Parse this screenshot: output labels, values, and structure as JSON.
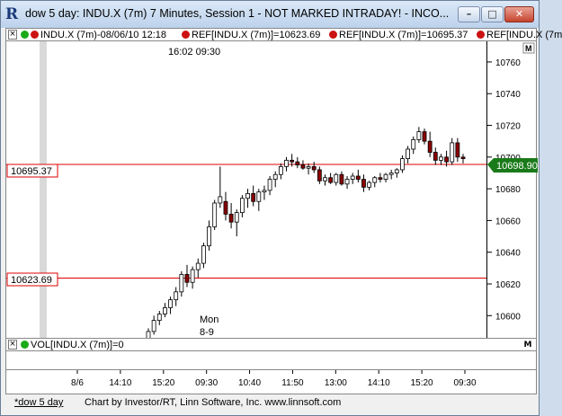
{
  "window": {
    "title": "dow 5 day: INDU.X (7m) 7 Minutes, Session 1 - NOT MARKED INTRADAY! - INCO...",
    "logo": "R",
    "min_label": "–",
    "max_label": "□",
    "close_label": "✕"
  },
  "legend": {
    "close_x": "×",
    "symbol": "INDU.X (7m)-08/06/10 12:18",
    "ref1": "REF[INDU.X (7m)]=10623.69",
    "ref2": "REF[INDU.X (7m)]=10695.37",
    "ref3": "REF[INDU.X (7m"
  },
  "chart": {
    "time_header": "16:02  09:30",
    "day_label_1": "Mon",
    "day_label_2": "8-9",
    "ref_label_1": "10623.69",
    "ref_label_2": "10695.37",
    "last_price": "10698.90",
    "maximize": "M"
  },
  "volume": {
    "close_x": "×",
    "label": "VOL[INDU.X (7m)]=0",
    "maximize": "M"
  },
  "status": {
    "tab": "*dow 5 day",
    "credit": "Chart by Investor/RT, Linn Software, Inc. www.linnsoft.com"
  },
  "colors": {
    "up_candle": "#ffffff",
    "down_candle": "#8b0000",
    "ref_line": "#dd0000",
    "last_price_bg": "#1a7a1a",
    "session_band": "#d9d9d9"
  },
  "chart_data": {
    "type": "candlestick",
    "symbol": "INDU.X",
    "interval": "7m",
    "y_ticks": [
      10600,
      10620,
      10640,
      10660,
      10680,
      10700,
      10720,
      10740,
      10760
    ],
    "ylim": [
      10586,
      10773
    ],
    "x_ticks": [
      "8/6",
      "14:10",
      "15:20",
      "09:30",
      "10:40",
      "11:50",
      "13:00",
      "14:10",
      "15:20",
      "09:30"
    ],
    "reference_lines": [
      10623.69,
      10695.37
    ],
    "last_price": 10698.9,
    "candles": [
      [
        10585,
        10592,
        10582,
        10590
      ],
      [
        10590,
        10600,
        10588,
        10597
      ],
      [
        10597,
        10603,
        10594,
        10601
      ],
      [
        10601,
        10608,
        10599,
        10605
      ],
      [
        10605,
        10612,
        10601,
        10610
      ],
      [
        10610,
        10618,
        10606,
        10615
      ],
      [
        10615,
        10628,
        10612,
        10626
      ],
      [
        10626,
        10632,
        10618,
        10621
      ],
      [
        10621,
        10631,
        10617,
        10629
      ],
      [
        10629,
        10636,
        10624,
        10633
      ],
      [
        10633,
        10646,
        10630,
        10644
      ],
      [
        10644,
        10660,
        10641,
        10656
      ],
      [
        10656,
        10673,
        10654,
        10671
      ],
      [
        10671,
        10694,
        10668,
        10675
      ],
      [
        10672,
        10678,
        10660,
        10664
      ],
      [
        10664,
        10671,
        10655,
        10659
      ],
      [
        10659,
        10667,
        10650,
        10665
      ],
      [
        10665,
        10676,
        10662,
        10674
      ],
      [
        10674,
        10680,
        10668,
        10677
      ],
      [
        10677,
        10682,
        10669,
        10672
      ],
      [
        10672,
        10680,
        10666,
        10678
      ],
      [
        10678,
        10682,
        10673,
        10679
      ],
      [
        10679,
        10688,
        10676,
        10686
      ],
      [
        10686,
        10691,
        10681,
        10689
      ],
      [
        10689,
        10696,
        10686,
        10694
      ],
      [
        10694,
        10700,
        10691,
        10698
      ],
      [
        10698,
        10702,
        10694,
        10697
      ],
      [
        10697,
        10700,
        10693,
        10695
      ],
      [
        10695,
        10698,
        10692,
        10693
      ],
      [
        10693,
        10696,
        10689,
        10694
      ],
      [
        10694,
        10697,
        10690,
        10692
      ],
      [
        10692,
        10694,
        10683,
        10685
      ],
      [
        10685,
        10689,
        10682,
        10687
      ],
      [
        10687,
        10690,
        10683,
        10684
      ],
      [
        10684,
        10690,
        10682,
        10689
      ],
      [
        10689,
        10691,
        10682,
        10683
      ],
      [
        10683,
        10688,
        10680,
        10686
      ],
      [
        10686,
        10690,
        10683,
        10688
      ],
      [
        10688,
        10692,
        10684,
        10686
      ],
      [
        10686,
        10689,
        10678,
        10681
      ],
      [
        10681,
        10685,
        10679,
        10684
      ],
      [
        10684,
        10688,
        10681,
        10687
      ],
      [
        10687,
        10690,
        10684,
        10686
      ],
      [
        10686,
        10690,
        10684,
        10689
      ],
      [
        10689,
        10692,
        10686,
        10690
      ],
      [
        10690,
        10693,
        10687,
        10692
      ],
      [
        10692,
        10701,
        10690,
        10699
      ],
      [
        10699,
        10707,
        10696,
        10705
      ],
      [
        10705,
        10713,
        10702,
        10711
      ],
      [
        10711,
        10719,
        10709,
        10716
      ],
      [
        10716,
        10718,
        10708,
        10710
      ],
      [
        10710,
        10716,
        10700,
        10703
      ],
      [
        10703,
        10706,
        10695,
        10698
      ],
      [
        10698,
        10702,
        10695,
        10700
      ],
      [
        10700,
        10704,
        10694,
        10697
      ],
      [
        10697,
        10712,
        10695,
        10709
      ],
      [
        10709,
        10712,
        10697,
        10700
      ],
      [
        10700,
        10702,
        10696,
        10699
      ]
    ]
  }
}
